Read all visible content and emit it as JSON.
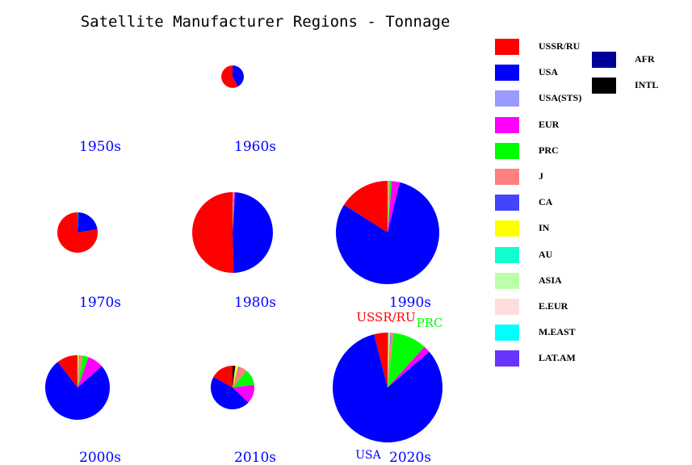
{
  "chart_data": {
    "type": "pie",
    "title": "Satellite Manufacturer Regions - Tonnage",
    "categories": [
      "USSR/RU",
      "USA",
      "USA(STS)",
      "EUR",
      "PRC",
      "J",
      "CA",
      "IN",
      "AU",
      "ASIA",
      "E.EUR",
      "M.EAST",
      "LAT.AM",
      "AFR",
      "INTL"
    ],
    "colors": [
      "#ff0000",
      "#0000ff",
      "#9999ff",
      "#ff00ff",
      "#00ff00",
      "#ff8080",
      "#4444ff",
      "#ffff00",
      "#11ffcc",
      "#bbffaa",
      "#ffdddd",
      "#00ffff",
      "#6633ff",
      "#000099",
      "#000000"
    ],
    "slice_start": "top",
    "slice_direction": "counterclockwise",
    "pie_size_encodes": "relative total tonnage (area)",
    "pies": [
      {
        "label": "1950s",
        "relative_total": 0,
        "values": []
      },
      {
        "label": "1960s",
        "relative_total": 0.042,
        "values": [
          58,
          42,
          0,
          0,
          0,
          0,
          0,
          0,
          0,
          0,
          0,
          0,
          0,
          0,
          0
        ]
      },
      {
        "label": "1970s",
        "relative_total": 0.135,
        "values": [
          77.5,
          22,
          0,
          0,
          0.5,
          0,
          0,
          0,
          0,
          0,
          0,
          0,
          0,
          0,
          0
        ]
      },
      {
        "label": "1980s",
        "relative_total": 0.54,
        "values": [
          50.5,
          48.5,
          0,
          0.4,
          0.2,
          0.3,
          0.1,
          0,
          0,
          0,
          0,
          0,
          0,
          0,
          0
        ]
      },
      {
        "label": "1990s",
        "relative_total": 0.886,
        "values": [
          16,
          80.2,
          0,
          2.5,
          0.6,
          0.4,
          0.1,
          0.2,
          0,
          0,
          0,
          0,
          0,
          0,
          0
        ]
      },
      {
        "label": "2000s",
        "relative_total": 0.346,
        "values": [
          10.5,
          76,
          0,
          8,
          3,
          1.5,
          0.3,
          0.7,
          0,
          0,
          0,
          0,
          0,
          0,
          0
        ]
      },
      {
        "label": "2010s",
        "relative_total": 0.158,
        "values": [
          17,
          46,
          0,
          14,
          12,
          6,
          0.5,
          2,
          0.2,
          0.3,
          0,
          0,
          0,
          0,
          2
        ]
      },
      {
        "label": "2020s",
        "relative_total": 1,
        "values": [
          4,
          82.3,
          0,
          2,
          10,
          0.7,
          0.2,
          0.4,
          0.1,
          0.1,
          0.1,
          0,
          0,
          0,
          0.1
        ]
      }
    ],
    "annotations": [
      {
        "pie": "2020s",
        "text": "USSR/RU",
        "color": "#ff0000"
      },
      {
        "pie": "2020s",
        "text": "PRC",
        "color": "#00ff00"
      },
      {
        "pie": "2020s",
        "text": "USA",
        "color": "#0000ff"
      }
    ],
    "legend_placement": "right"
  }
}
